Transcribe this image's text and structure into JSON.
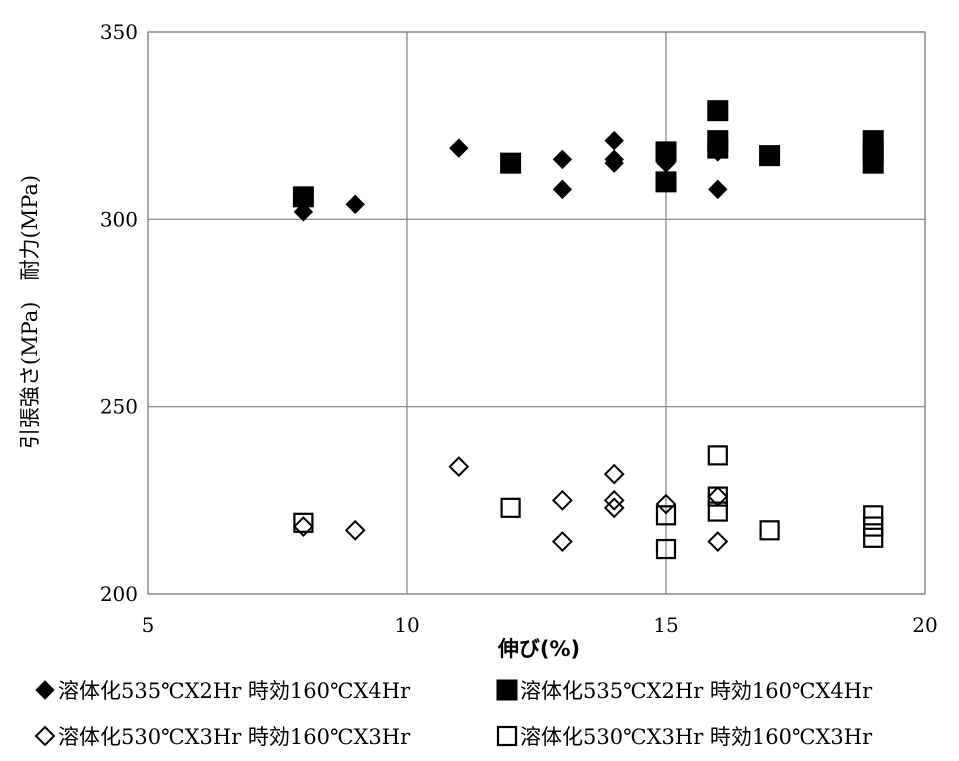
{
  "chart_data": {
    "type": "scatter",
    "title": "",
    "xlabel": "伸び(%)",
    "ylabel": "引張強さ(MPa)　耐力(MPa)",
    "xlim": [
      5,
      20
    ],
    "ylim": [
      200,
      350
    ],
    "xticks": [
      5,
      10,
      15,
      20
    ],
    "yticks": [
      200,
      250,
      300,
      350
    ],
    "grid": true,
    "legend_position": "bottom",
    "series": [
      {
        "name": "溶体化535℃X2Hr 時効160℃X4Hr",
        "marker": "diamond-filled",
        "points": [
          [
            8,
            302
          ],
          [
            9,
            304
          ],
          [
            11,
            319
          ],
          [
            13,
            308
          ],
          [
            13,
            316
          ],
          [
            14,
            321
          ],
          [
            14,
            316
          ],
          [
            14,
            315
          ],
          [
            15,
            315
          ],
          [
            16,
            308
          ],
          [
            16,
            318
          ]
        ]
      },
      {
        "name": "溶体化535℃X2Hr 時効160℃X4Hr",
        "marker": "square-filled",
        "points": [
          [
            8,
            306
          ],
          [
            12,
            315
          ],
          [
            15,
            318
          ],
          [
            15,
            310
          ],
          [
            16,
            329
          ],
          [
            16,
            321
          ],
          [
            16,
            319
          ],
          [
            17,
            317
          ],
          [
            19,
            321
          ],
          [
            19,
            318
          ],
          [
            19,
            315
          ]
        ]
      },
      {
        "name": "溶体化530℃X3Hr 時効160℃X3Hr",
        "marker": "diamond-open",
        "points": [
          [
            8,
            218
          ],
          [
            9,
            217
          ],
          [
            11,
            234
          ],
          [
            13,
            225
          ],
          [
            13,
            214
          ],
          [
            14,
            232
          ],
          [
            14,
            225
          ],
          [
            14,
            223
          ],
          [
            15,
            224
          ],
          [
            16,
            226
          ],
          [
            16,
            214
          ]
        ]
      },
      {
        "name": "溶体化530℃X3Hr 時効160℃X3Hr",
        "marker": "square-open",
        "points": [
          [
            8,
            219
          ],
          [
            12,
            223
          ],
          [
            15,
            221
          ],
          [
            15,
            212
          ],
          [
            16,
            237
          ],
          [
            16,
            226
          ],
          [
            16,
            222
          ],
          [
            17,
            217
          ],
          [
            19,
            221
          ],
          [
            19,
            218
          ],
          [
            19,
            215
          ]
        ]
      }
    ]
  }
}
